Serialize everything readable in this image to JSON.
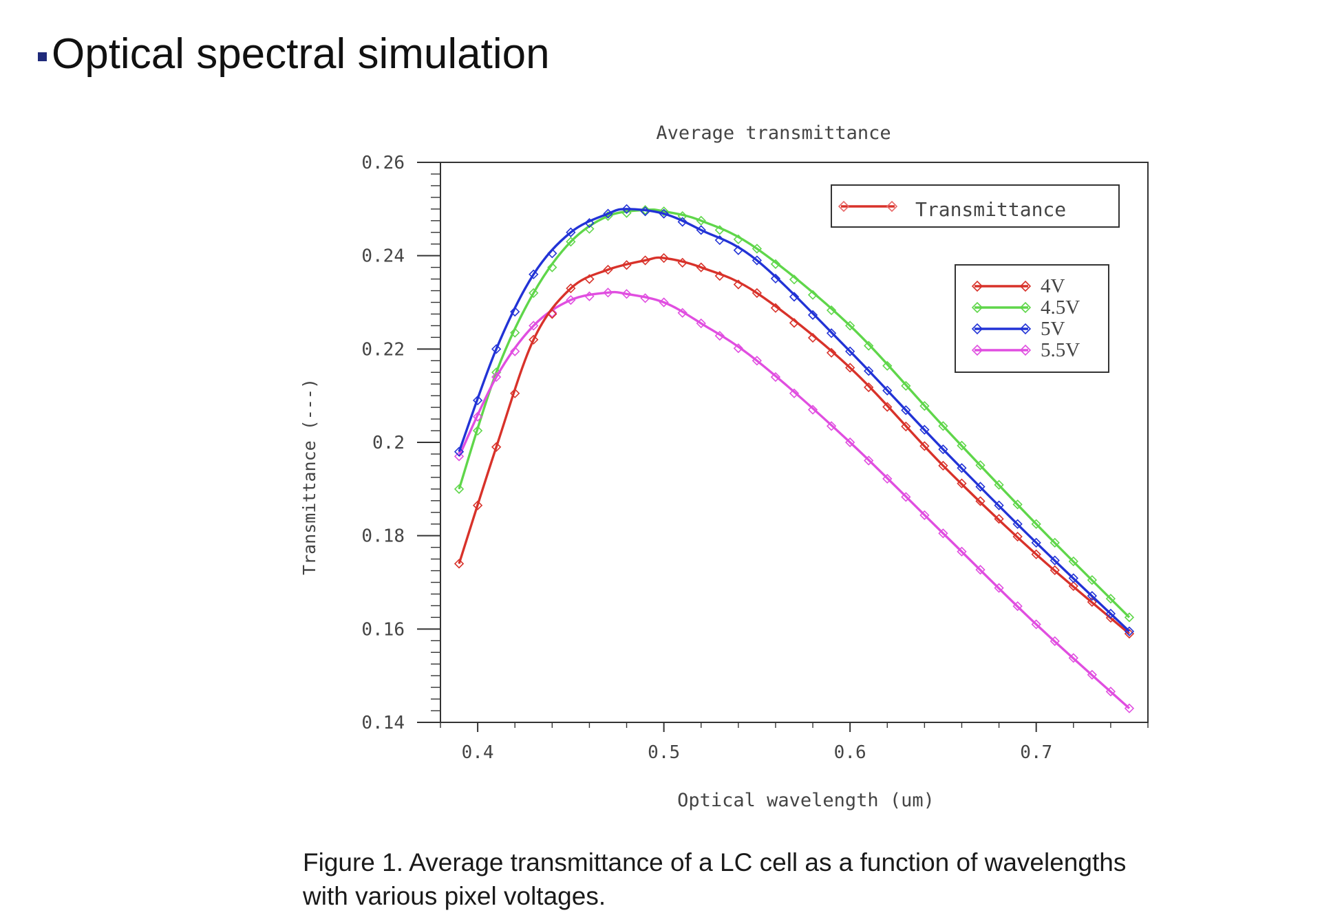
{
  "slide": {
    "heading": "Optical spectral simulation",
    "caption_line1": "Figure 1. Average transmittance of a LC cell as a function of wavelengths",
    "caption_line2": "with various pixel voltages."
  },
  "colors": {
    "heading_bullet": "#1f2a7a",
    "4V": "#d8322a",
    "4.5V": "#5fd64a",
    "5V": "#2233d6",
    "5.5V": "#e04ee0",
    "marker": "#e86a6a"
  },
  "chart_data": {
    "type": "line",
    "title": "Average transmittance",
    "xlabel": "Optical wavelength (um)",
    "ylabel": "Transmittance (---)",
    "xlim": [
      0.38,
      0.76
    ],
    "ylim": [
      0.14,
      0.26
    ],
    "xticks": [
      "0.4",
      "0.5",
      "0.6",
      "0.7"
    ],
    "yticks": [
      "0.26",
      "0.24",
      "0.22",
      "0.2",
      "0.18",
      "0.16",
      "0.14"
    ],
    "grid": false,
    "legend_title_entry": "Transmittance",
    "legend_placement": "top-right",
    "series": [
      {
        "name": "4V",
        "x": [
          0.39,
          0.41,
          0.43,
          0.45,
          0.47,
          0.49,
          0.5,
          0.52,
          0.55,
          0.6,
          0.65,
          0.7,
          0.75
        ],
        "y": [
          0.174,
          0.199,
          0.222,
          0.233,
          0.237,
          0.239,
          0.2395,
          0.2375,
          0.232,
          0.216,
          0.195,
          0.176,
          0.159
        ]
      },
      {
        "name": "4.5V",
        "x": [
          0.39,
          0.41,
          0.43,
          0.45,
          0.47,
          0.49,
          0.5,
          0.52,
          0.55,
          0.6,
          0.65,
          0.7,
          0.75
        ],
        "y": [
          0.19,
          0.215,
          0.232,
          0.243,
          0.2485,
          0.2498,
          0.2495,
          0.2475,
          0.2415,
          0.225,
          0.2035,
          0.1825,
          0.1625
        ]
      },
      {
        "name": "5V",
        "x": [
          0.39,
          0.41,
          0.43,
          0.45,
          0.47,
          0.48,
          0.5,
          0.52,
          0.55,
          0.6,
          0.65,
          0.7,
          0.75
        ],
        "y": [
          0.198,
          0.22,
          0.236,
          0.245,
          0.249,
          0.25,
          0.249,
          0.2455,
          0.239,
          0.2195,
          0.1985,
          0.1785,
          0.1595
        ]
      },
      {
        "name": "5.5V",
        "x": [
          0.39,
          0.41,
          0.43,
          0.45,
          0.47,
          0.48,
          0.5,
          0.52,
          0.55,
          0.6,
          0.65,
          0.7,
          0.75
        ],
        "y": [
          0.197,
          0.214,
          0.225,
          0.2305,
          0.2321,
          0.2318,
          0.23,
          0.2255,
          0.2175,
          0.2,
          0.1805,
          0.161,
          0.143
        ]
      }
    ]
  }
}
